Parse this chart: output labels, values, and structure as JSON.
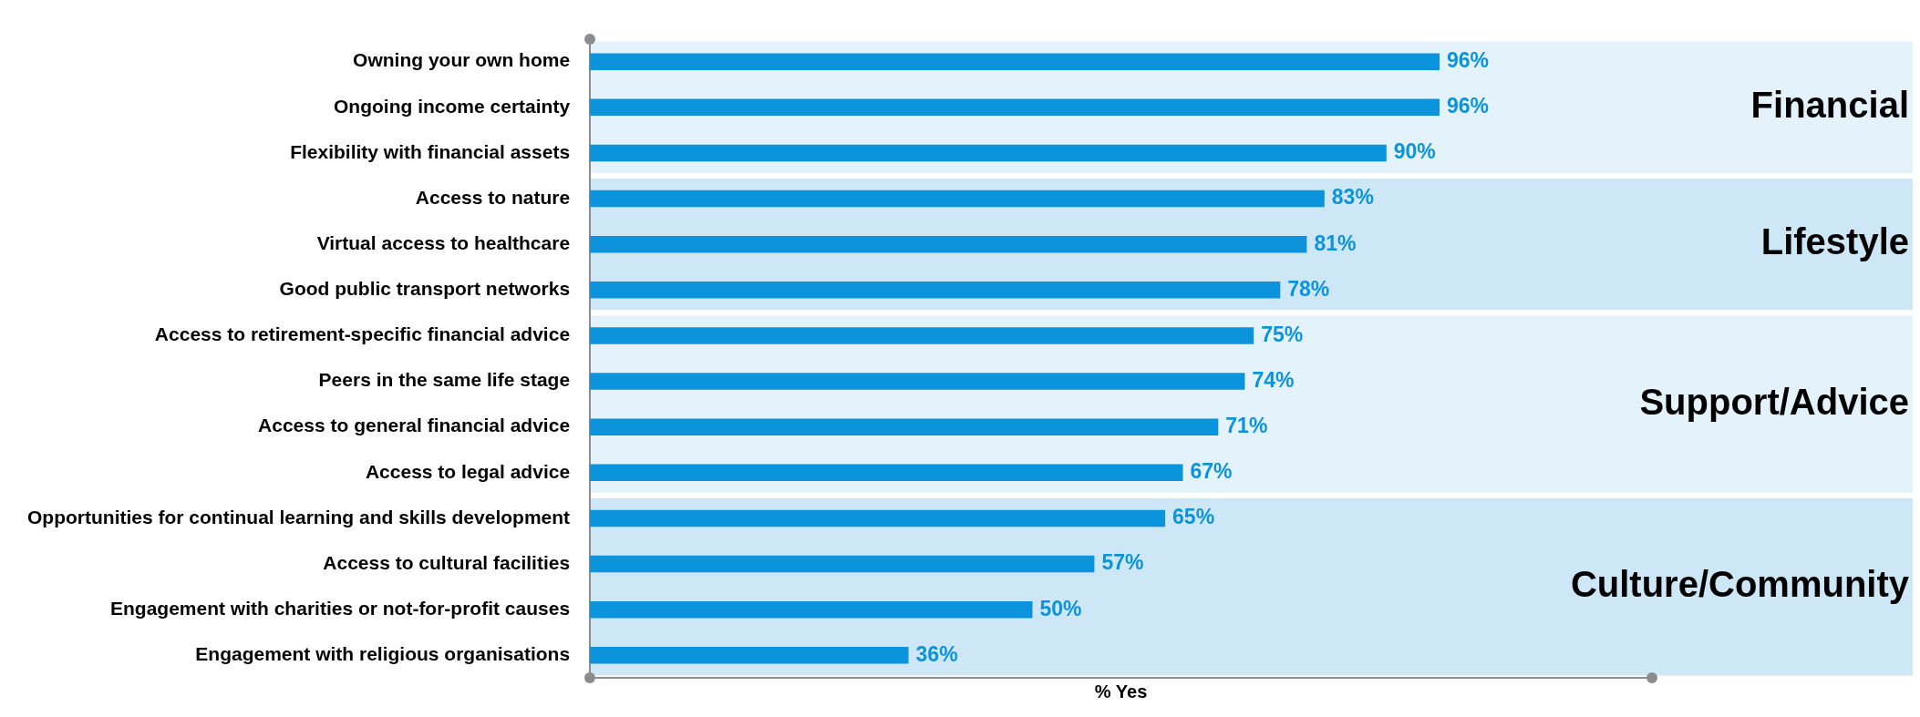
{
  "chart_data": {
    "type": "bar",
    "orientation": "horizontal",
    "xlabel": "% Yes",
    "categories": [
      "Owning your own home",
      "Ongoing income certainty",
      "Flexibility with financial assets",
      "Access to nature",
      "Virtual access to healthcare",
      "Good public transport networks",
      "Access to retirement-specific financial advice",
      "Peers in the same life stage",
      "Access to general financial advice",
      "Access to legal advice",
      "Opportunities for continual learning and skills development",
      "Access to cultural facilities",
      "Engagement with charities or not-for-profit causes",
      "Engagement with religious organisations"
    ],
    "values": [
      96,
      96,
      90,
      83,
      81,
      78,
      75,
      74,
      71,
      67,
      65,
      57,
      50,
      36
    ],
    "value_labels": [
      "96%",
      "96%",
      "90%",
      "83%",
      "81%",
      "78%",
      "75%",
      "74%",
      "71%",
      "67%",
      "65%",
      "57%",
      "50%",
      "36%"
    ],
    "color": "#0b93dc",
    "xlim": [
      0,
      120
    ],
    "tick_labels": "y",
    "grid": false,
    "legend": false,
    "bands": [
      {
        "axis": "y",
        "from": "Owning your own home",
        "to": "Flexibility with financial assets",
        "label": "Financial",
        "color": "#e4f3fb"
      },
      {
        "axis": "y",
        "from": "Access to nature",
        "to": "Good public transport networks",
        "label": "Lifestyle",
        "color": "#cde7f6"
      },
      {
        "axis": "y",
        "from": "Access to retirement-specific financial advice",
        "to": "Access to legal advice",
        "label": "Support/Advice",
        "color": "#e4f3fb"
      },
      {
        "axis": "y",
        "from": "Opportunities for continual learning and skills development",
        "to": "Engagement with religious organisations",
        "label": "Culture/Community",
        "color": "#cde7f6"
      }
    ]
  }
}
